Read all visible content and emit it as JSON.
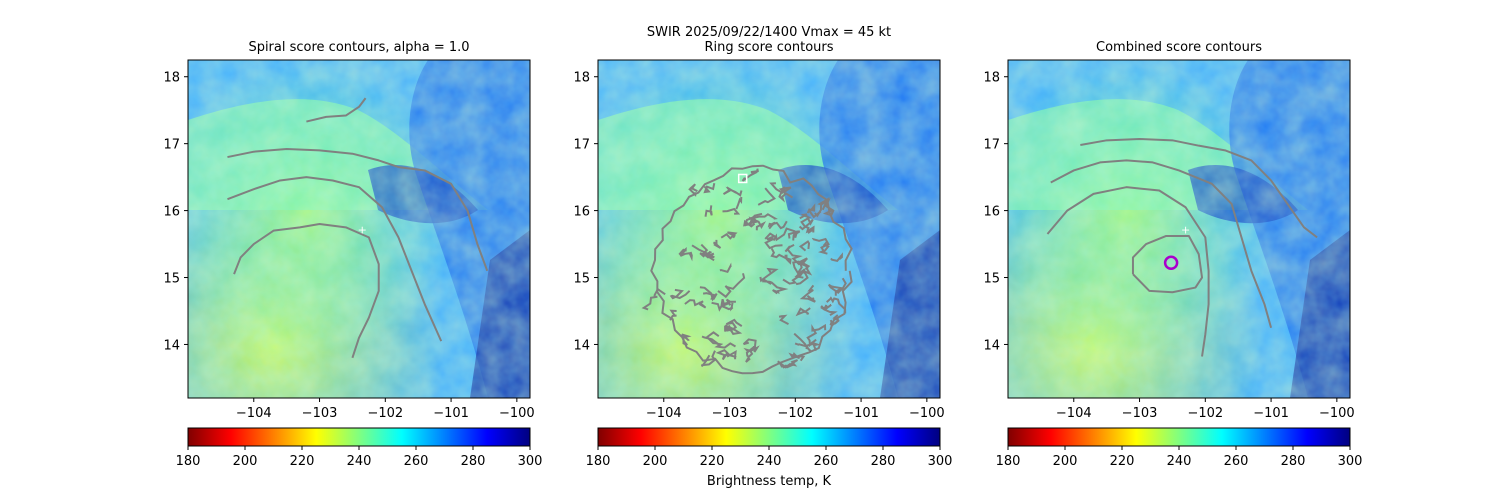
{
  "figure": {
    "suptitle_line1": "SWIR  2025/09/22/1400    Vmax = 45 kt",
    "colorbar_label": "Brightness temp, K"
  },
  "chart_data": [
    {
      "type": "heatmap",
      "title": "Spiral score contours, alpha =  1.0",
      "xlabel": "",
      "ylabel": "",
      "xlim": [
        -105.0,
        -99.8
      ],
      "ylim": [
        13.2,
        18.25
      ],
      "x_ticks": [
        -104,
        -103,
        -102,
        -101,
        -100
      ],
      "x_tick_labels": [
        "−104",
        "−103",
        "−102",
        "−101",
        "−100"
      ],
      "y_ticks": [
        14,
        15,
        16,
        17,
        18
      ],
      "y_tick_labels": [
        "14",
        "15",
        "16",
        "17",
        "18"
      ],
      "colormap": "jet_r",
      "color_range": [
        180,
        300
      ],
      "contour_color": "#808080",
      "center_marker": {
        "symbol": "+",
        "lon": -102.35,
        "lat": 15.72,
        "color": "#ffffff"
      },
      "contours": [
        {
          "name": "spiral-1",
          "points": [
            [
              -103.2,
              17.33
            ],
            [
              -102.9,
              17.4
            ],
            [
              -102.6,
              17.42
            ],
            [
              -102.4,
              17.55
            ],
            [
              -102.3,
              17.68
            ]
          ]
        },
        {
          "name": "spiral-2",
          "points": [
            [
              -104.4,
              16.8
            ],
            [
              -104.0,
              16.88
            ],
            [
              -103.5,
              16.92
            ],
            [
              -103.0,
              16.9
            ],
            [
              -102.5,
              16.85
            ],
            [
              -102.1,
              16.75
            ],
            [
              -101.8,
              16.65
            ],
            [
              -101.4,
              16.6
            ],
            [
              -101.0,
              16.4
            ],
            [
              -100.75,
              16.0
            ],
            [
              -100.6,
              15.5
            ],
            [
              -100.45,
              15.1
            ]
          ]
        },
        {
          "name": "spiral-3",
          "points": [
            [
              -104.4,
              16.17
            ],
            [
              -104.0,
              16.32
            ],
            [
              -103.6,
              16.45
            ],
            [
              -103.2,
              16.5
            ],
            [
              -102.8,
              16.45
            ],
            [
              -102.4,
              16.35
            ],
            [
              -102.05,
              16.05
            ],
            [
              -101.8,
              15.6
            ],
            [
              -101.6,
              15.1
            ],
            [
              -101.4,
              14.6
            ],
            [
              -101.15,
              14.05
            ]
          ]
        },
        {
          "name": "spiral-4",
          "points": [
            [
              -104.3,
              15.05
            ],
            [
              -104.2,
              15.3
            ],
            [
              -104.0,
              15.5
            ],
            [
              -103.7,
              15.7
            ],
            [
              -103.3,
              15.75
            ],
            [
              -103.0,
              15.8
            ],
            [
              -102.6,
              15.75
            ],
            [
              -102.25,
              15.6
            ],
            [
              -102.1,
              15.2
            ],
            [
              -102.1,
              14.8
            ],
            [
              -102.25,
              14.4
            ],
            [
              -102.4,
              14.1
            ],
            [
              -102.5,
              13.8
            ]
          ]
        }
      ],
      "colorbar_ticks": [
        180,
        200,
        220,
        240,
        260,
        280,
        300
      ]
    },
    {
      "type": "heatmap",
      "title": "Ring score contours",
      "xlabel": "",
      "ylabel": "",
      "xlim": [
        -105.0,
        -99.8
      ],
      "ylim": [
        13.2,
        18.25
      ],
      "x_ticks": [
        -104,
        -103,
        -102,
        -101,
        -100
      ],
      "x_tick_labels": [
        "−104",
        "−103",
        "−102",
        "−101",
        "−100"
      ],
      "y_ticks": [
        14,
        15,
        16,
        17,
        18
      ],
      "y_tick_labels": [
        "14",
        "15",
        "16",
        "17",
        "18"
      ],
      "colormap": "jet_r",
      "color_range": [
        180,
        300
      ],
      "contour_color": "#808080",
      "square_marker": {
        "lon": -102.8,
        "lat": 16.48,
        "color": "#ffffff"
      },
      "ring_region": {
        "center_lon": -102.65,
        "center_lat": 15.1,
        "radius_deg": 1.5
      },
      "colorbar_ticks": [
        180,
        200,
        220,
        240,
        260,
        280,
        300
      ]
    },
    {
      "type": "heatmap",
      "title": "Combined score contours",
      "xlabel": "",
      "ylabel": "",
      "xlim": [
        -105.0,
        -99.8
      ],
      "ylim": [
        13.2,
        18.25
      ],
      "x_ticks": [
        -104,
        -103,
        -102,
        -101,
        -100
      ],
      "x_tick_labels": [
        "−104",
        "−103",
        "−102",
        "−101",
        "−100"
      ],
      "y_ticks": [
        14,
        15,
        16,
        17,
        18
      ],
      "y_tick_labels": [
        "14",
        "15",
        "16",
        "17",
        "18"
      ],
      "colormap": "jet_r",
      "color_range": [
        180,
        300
      ],
      "contour_color": "#808080",
      "center_marker": {
        "symbol": "+",
        "lon": -102.3,
        "lat": 15.72,
        "color": "#ffffff"
      },
      "circle_marker": {
        "lon": -102.52,
        "lat": 15.22,
        "color": "#aa00cc"
      },
      "contours": [
        {
          "name": "combined-1",
          "points": [
            [
              -103.9,
              16.98
            ],
            [
              -103.5,
              17.05
            ],
            [
              -103.0,
              17.07
            ],
            [
              -102.5,
              17.05
            ],
            [
              -102.1,
              16.97
            ],
            [
              -101.7,
              16.9
            ],
            [
              -101.3,
              16.75
            ],
            [
              -101.0,
              16.45
            ],
            [
              -100.75,
              16.1
            ],
            [
              -100.5,
              15.75
            ],
            [
              -100.3,
              15.6
            ]
          ]
        },
        {
          "name": "combined-2",
          "points": [
            [
              -104.35,
              16.42
            ],
            [
              -104.0,
              16.6
            ],
            [
              -103.6,
              16.72
            ],
            [
              -103.2,
              16.75
            ],
            [
              -102.8,
              16.72
            ],
            [
              -102.4,
              16.6
            ],
            [
              -101.9,
              16.4
            ],
            [
              -101.6,
              16.1
            ],
            [
              -101.45,
              15.6
            ],
            [
              -101.3,
              15.1
            ],
            [
              -101.1,
              14.6
            ],
            [
              -101.0,
              14.25
            ]
          ]
        },
        {
          "name": "combined-3",
          "points": [
            [
              -104.4,
              15.65
            ],
            [
              -104.1,
              16.0
            ],
            [
              -103.7,
              16.25
            ],
            [
              -103.2,
              16.35
            ],
            [
              -102.7,
              16.3
            ],
            [
              -102.3,
              16.05
            ],
            [
              -102.0,
              15.6
            ],
            [
              -101.95,
              15.1
            ],
            [
              -101.95,
              14.6
            ],
            [
              -102.0,
              14.15
            ],
            [
              -102.05,
              13.82
            ]
          ]
        },
        {
          "name": "combined-4",
          "points": [
            [
              -103.1,
              15.05
            ],
            [
              -103.1,
              15.3
            ],
            [
              -102.9,
              15.5
            ],
            [
              -102.6,
              15.62
            ],
            [
              -102.25,
              15.62
            ],
            [
              -102.1,
              15.35
            ],
            [
              -102.05,
              15.0
            ],
            [
              -102.15,
              14.85
            ],
            [
              -102.5,
              14.78
            ],
            [
              -102.85,
              14.8
            ],
            [
              -103.1,
              15.05
            ]
          ]
        }
      ],
      "colorbar_ticks": [
        180,
        200,
        220,
        240,
        260,
        280,
        300
      ]
    }
  ]
}
